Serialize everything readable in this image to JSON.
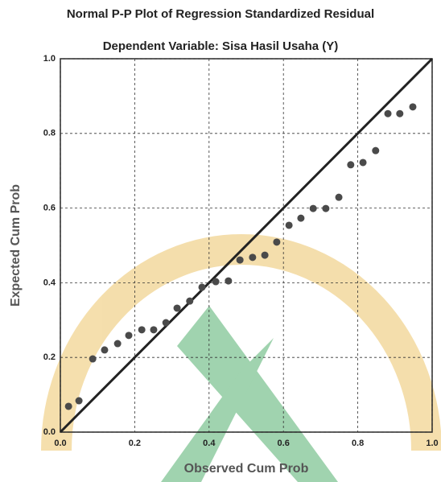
{
  "chart_data": {
    "type": "scatter",
    "title": "Normal P-P Plot of Regression Standardized Residual",
    "subtitle": "Dependent Variable: Sisa Hasil Usaha (Y)",
    "x_label": "Observed Cum Prob",
    "y_label": "Expected Cum Prob",
    "series": [
      {
        "color": "#4a4a4a",
        "x": [
          0.022,
          0.05,
          0.087,
          0.119,
          0.154,
          0.184,
          0.219,
          0.251,
          0.284,
          0.314,
          0.348,
          0.381,
          0.418,
          0.452,
          0.483,
          0.517,
          0.55,
          0.582,
          0.615,
          0.647,
          0.68,
          0.714,
          0.749,
          0.781,
          0.814,
          0.848,
          0.881,
          0.913,
          0.948
        ],
        "values": [
          0.069,
          0.084,
          0.196,
          0.22,
          0.237,
          0.259,
          0.274,
          0.274,
          0.293,
          0.332,
          0.351,
          0.388,
          0.403,
          0.405,
          0.461,
          0.468,
          0.474,
          0.509,
          0.554,
          0.573,
          0.599,
          0.599,
          0.629,
          0.716,
          0.722,
          0.754,
          0.853,
          0.853,
          0.871
        ]
      }
    ],
    "xlim": [
      0,
      1
    ],
    "ylim": [
      0,
      1
    ],
    "xticks": [
      {
        "value": 0,
        "label": "0.0"
      },
      0.2,
      0.4,
      0.6,
      0.8,
      {
        "value": 1,
        "label": "1.0"
      }
    ],
    "yticks": [
      {
        "value": 0,
        "label": "0.0"
      },
      0.2,
      0.4,
      0.6,
      0.8,
      {
        "value": 1,
        "label": "1.0"
      }
    ],
    "grid": true,
    "line_color": "#222222"
  }
}
